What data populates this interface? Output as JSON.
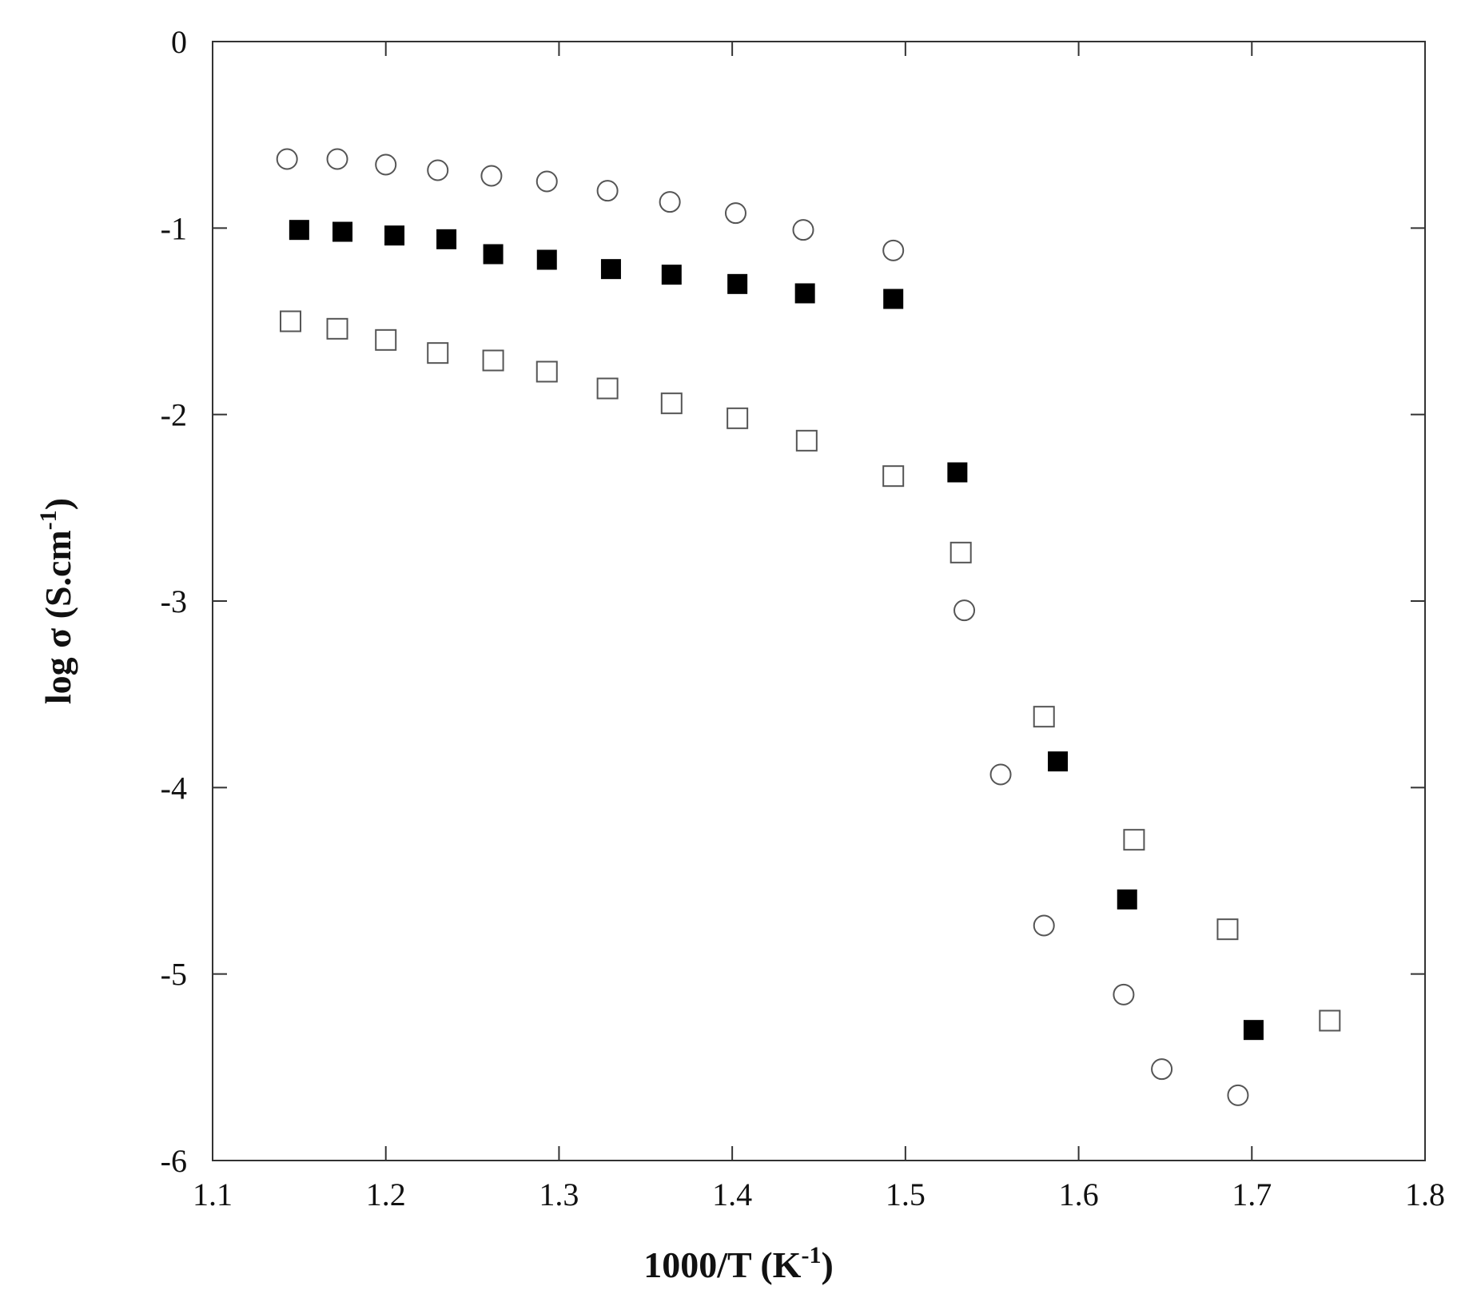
{
  "chart_data": {
    "type": "scatter",
    "xlabel": "1000/T (K",
    "xlabel_sup": "-1",
    "xlabel_end": ")",
    "ylabel": "log σ (S.cm",
    "ylabel_sup": "-1",
    "ylabel_end": ")",
    "xlim": [
      1.1,
      1.8
    ],
    "ylim": [
      -6,
      0
    ],
    "x_ticks": [
      1.1,
      1.2,
      1.3,
      1.4,
      1.5,
      1.6,
      1.7,
      1.8
    ],
    "x_tick_labels": [
      "1.1",
      "1.2",
      "1.3",
      "1.4",
      "1.5",
      "1.6",
      "1.7",
      "1.8"
    ],
    "y_ticks": [
      0,
      -1,
      -2,
      -3,
      -4,
      -5,
      -6
    ],
    "y_tick_labels": [
      "0",
      "-1",
      "-2",
      "-3",
      "-4",
      "-5",
      "-6"
    ],
    "grid": false,
    "series": [
      {
        "marker": "circle-open",
        "color": "#555555",
        "points": [
          [
            1.143,
            -0.63
          ],
          [
            1.172,
            -0.63
          ],
          [
            1.2,
            -0.66
          ],
          [
            1.23,
            -0.69
          ],
          [
            1.261,
            -0.72
          ],
          [
            1.293,
            -0.75
          ],
          [
            1.328,
            -0.8
          ],
          [
            1.364,
            -0.86
          ],
          [
            1.402,
            -0.92
          ],
          [
            1.441,
            -1.01
          ],
          [
            1.493,
            -1.12
          ],
          [
            1.534,
            -3.05
          ],
          [
            1.555,
            -3.93
          ],
          [
            1.58,
            -4.74
          ],
          [
            1.626,
            -5.11
          ],
          [
            1.648,
            -5.51
          ],
          [
            1.692,
            -5.65
          ]
        ]
      },
      {
        "marker": "square-filled",
        "color": "#000000",
        "points": [
          [
            1.15,
            -1.01
          ],
          [
            1.175,
            -1.02
          ],
          [
            1.205,
            -1.04
          ],
          [
            1.235,
            -1.06
          ],
          [
            1.262,
            -1.14
          ],
          [
            1.293,
            -1.17
          ],
          [
            1.33,
            -1.22
          ],
          [
            1.365,
            -1.25
          ],
          [
            1.403,
            -1.3
          ],
          [
            1.442,
            -1.35
          ],
          [
            1.493,
            -1.38
          ],
          [
            1.53,
            -2.31
          ],
          [
            1.588,
            -3.86
          ],
          [
            1.628,
            -4.6
          ],
          [
            1.701,
            -5.3
          ]
        ]
      },
      {
        "marker": "square-open",
        "color": "#555555",
        "points": [
          [
            1.145,
            -1.5
          ],
          [
            1.172,
            -1.54
          ],
          [
            1.2,
            -1.6
          ],
          [
            1.23,
            -1.67
          ],
          [
            1.262,
            -1.71
          ],
          [
            1.293,
            -1.77
          ],
          [
            1.328,
            -1.86
          ],
          [
            1.365,
            -1.94
          ],
          [
            1.403,
            -2.02
          ],
          [
            1.443,
            -2.14
          ],
          [
            1.493,
            -2.33
          ],
          [
            1.532,
            -2.74
          ],
          [
            1.58,
            -3.62
          ],
          [
            1.632,
            -4.28
          ],
          [
            1.686,
            -4.76
          ],
          [
            1.745,
            -5.25
          ]
        ]
      }
    ]
  }
}
